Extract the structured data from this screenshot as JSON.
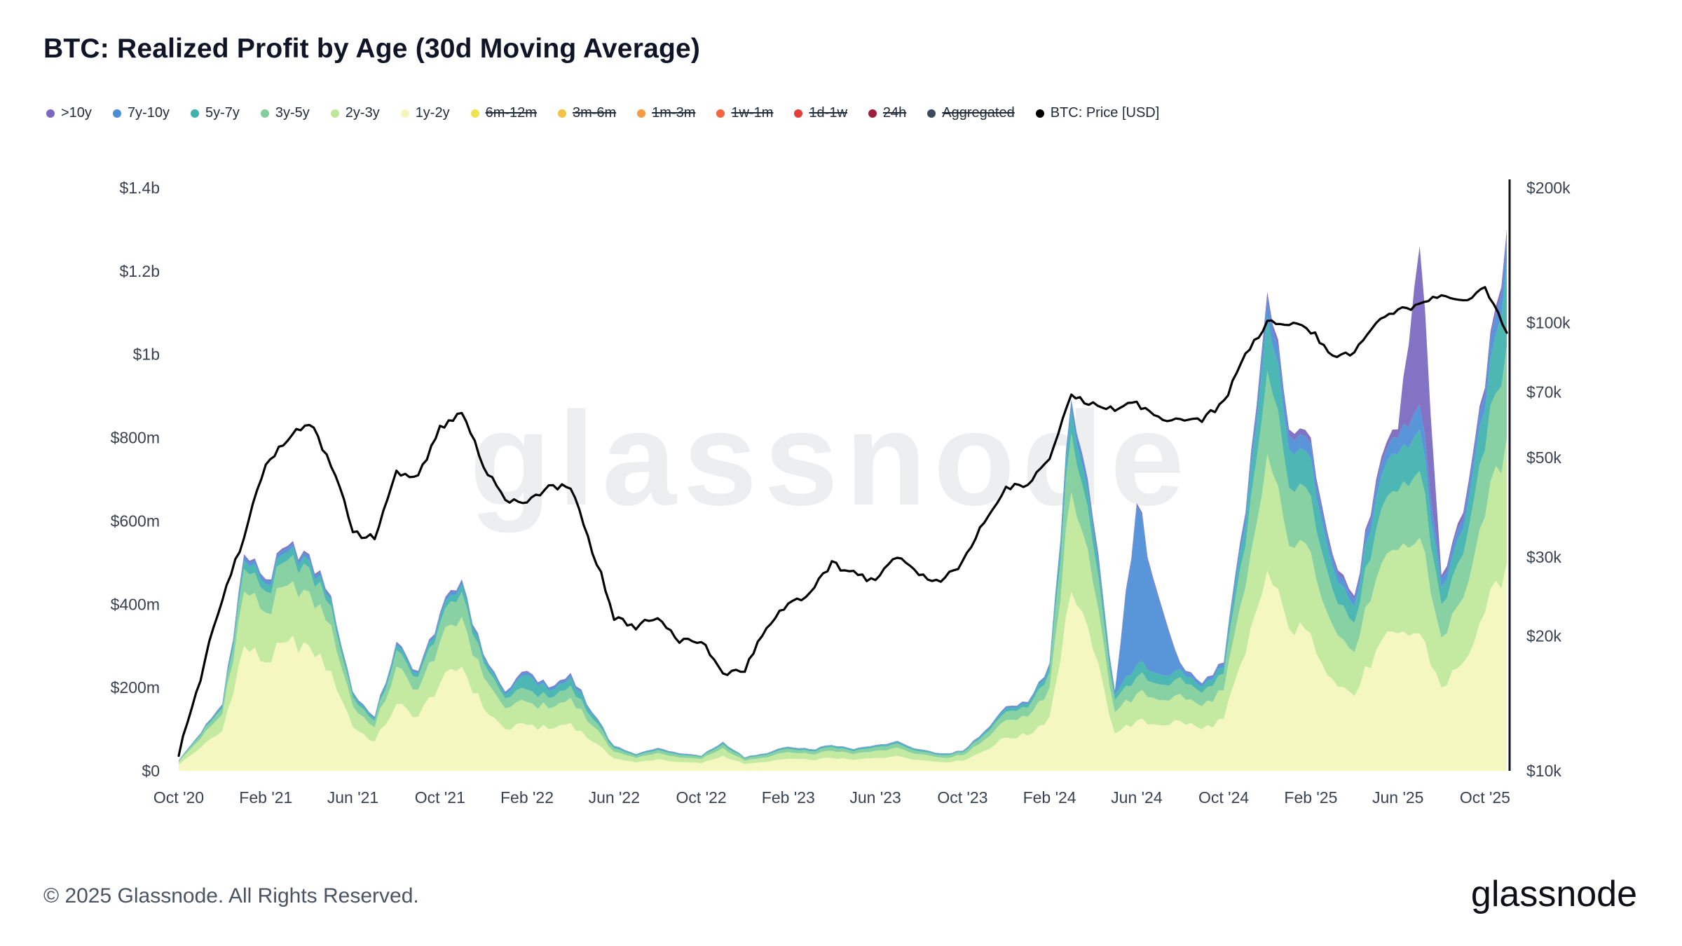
{
  "title": "BTC: Realized Profit by Age (30d Moving Average)",
  "watermark": "glassnode",
  "footer": {
    "copyright": "© 2025 Glassnode. All Rights Reserved.",
    "brand": "glassnode"
  },
  "legend": [
    {
      "label": ">10y",
      "color": "#7a68c0",
      "enabled": true
    },
    {
      "label": "7y-10y",
      "color": "#4b8ed6",
      "enabled": true
    },
    {
      "label": "5y-7y",
      "color": "#3fb1ad",
      "enabled": true
    },
    {
      "label": "3y-5y",
      "color": "#7fce9b",
      "enabled": true
    },
    {
      "label": "2y-3y",
      "color": "#bfe79a",
      "enabled": true
    },
    {
      "label": "1y-2y",
      "color": "#f3f7bb",
      "enabled": true
    },
    {
      "label": "6m-12m",
      "color": "#efe24e",
      "enabled": false
    },
    {
      "label": "3m-6m",
      "color": "#f4c244",
      "enabled": false
    },
    {
      "label": "1m-3m",
      "color": "#f79b41",
      "enabled": false
    },
    {
      "label": "1w-1m",
      "color": "#f2663f",
      "enabled": false
    },
    {
      "label": "1d-1w",
      "color": "#e53c3c",
      "enabled": false
    },
    {
      "label": "24h",
      "color": "#9e1e3c",
      "enabled": false
    },
    {
      "label": "Aggregated",
      "color": "#3e4a5a",
      "enabled": false
    },
    {
      "label": "BTC: Price [USD]",
      "color": "#000000",
      "enabled": true
    }
  ],
  "chart_data": {
    "type": "area",
    "stacked": true,
    "title": "BTC: Realized Profit by Age (30d Moving Average)",
    "legend_position": "top",
    "grid": false,
    "x_months": [
      "2020-10",
      "2020-11",
      "2020-12",
      "2021-01",
      "2021-02",
      "2021-03",
      "2021-04",
      "2021-05",
      "2021-06",
      "2021-07",
      "2021-08",
      "2021-09",
      "2021-10",
      "2021-11",
      "2021-12",
      "2022-01",
      "2022-02",
      "2022-03",
      "2022-04",
      "2022-05",
      "2022-06",
      "2022-07",
      "2022-08",
      "2022-09",
      "2022-10",
      "2022-11",
      "2022-12",
      "2023-01",
      "2023-02",
      "2023-03",
      "2023-04",
      "2023-05",
      "2023-06",
      "2023-07",
      "2023-08",
      "2023-09",
      "2023-10",
      "2023-11",
      "2023-12",
      "2024-01",
      "2024-02",
      "2024-03",
      "2024-04",
      "2024-05",
      "2024-06",
      "2024-07",
      "2024-08",
      "2024-09",
      "2024-10",
      "2024-11",
      "2024-12",
      "2025-01",
      "2025-02",
      "2025-03",
      "2025-04",
      "2025-05",
      "2025-06",
      "2025-07",
      "2025-08",
      "2025-09",
      "2025-10",
      "2025-11"
    ],
    "x_tick_indices": [
      0,
      4,
      8,
      12,
      16,
      20,
      24,
      28,
      32,
      36,
      40,
      44,
      48,
      52,
      56,
      60
    ],
    "x_tick_labels": [
      "Oct '20",
      "Feb '21",
      "Jun '21",
      "Oct '21",
      "Feb '22",
      "Jun '22",
      "Oct '22",
      "Feb '23",
      "Jun '23",
      "Oct '23",
      "Feb '24",
      "Jun '24",
      "Oct '24",
      "Feb '25",
      "Jun '25",
      "Oct '25"
    ],
    "left_axis": {
      "unit": "USD realized profit",
      "max_m": 1400,
      "values_m": [
        0,
        200,
        400,
        600,
        800,
        1000,
        1200,
        1400
      ],
      "labels": [
        "$0",
        "$200m",
        "$400m",
        "$600m",
        "$800m",
        "$1b",
        "$1.2b",
        "$1.4b"
      ]
    },
    "right_axis": {
      "scale": "log",
      "min_k": 10,
      "max_k": 200,
      "values_k": [
        10,
        20,
        30,
        50,
        70,
        100,
        200
      ],
      "labels": [
        "$10k",
        "$20k",
        "$30k",
        "$50k",
        "$70k",
        "$100k",
        "$200k"
      ]
    },
    "series": [
      {
        "name": "1y-2y",
        "color": "#f3f7bb",
        "values_m": [
          15,
          55,
          95,
          300,
          260,
          310,
          300,
          240,
          105,
          70,
          160,
          130,
          210,
          250,
          150,
          100,
          110,
          100,
          115,
          70,
          30,
          20,
          28,
          21,
          18,
          36,
          16,
          21,
          29,
          26,
          31,
          26,
          31,
          36,
          26,
          21,
          24,
          48,
          80,
          85,
          130,
          430,
          290,
          90,
          120,
          110,
          120,
          100,
          125,
          280,
          480,
          340,
          330,
          220,
          180,
          290,
          330,
          330,
          200,
          260,
          380,
          500
        ]
      },
      {
        "name": "2y-3y",
        "color": "#bfe79a",
        "values_m": [
          6,
          22,
          40,
          130,
          120,
          135,
          130,
          110,
          50,
          35,
          90,
          65,
          100,
          120,
          75,
          50,
          55,
          50,
          60,
          38,
          16,
          11,
          15,
          11,
          10,
          19,
          8,
          11,
          16,
          14,
          17,
          14,
          17,
          20,
          14,
          11,
          13,
          26,
          42,
          45,
          70,
          240,
          160,
          50,
          65,
          60,
          65,
          55,
          68,
          160,
          280,
          200,
          195,
          130,
          105,
          170,
          200,
          230,
          120,
          155,
          230,
          300
        ]
      },
      {
        "name": "3y-5y",
        "color": "#7fce9b",
        "values_m": [
          2,
          8,
          15,
          55,
          50,
          60,
          58,
          45,
          22,
          15,
          40,
          30,
          45,
          60,
          35,
          24,
          30,
          25,
          30,
          18,
          8,
          5,
          7,
          6,
          5,
          9,
          5,
          6,
          8,
          7,
          9,
          7,
          9,
          10,
          7,
          6,
          7,
          13,
          20,
          22,
          38,
          140,
          90,
          30,
          40,
          38,
          40,
          32,
          40,
          100,
          200,
          140,
          135,
          85,
          70,
          120,
          140,
          160,
          80,
          105,
          160,
          220
        ]
      },
      {
        "name": "5y-7y",
        "color": "#3fb1ad",
        "values_m": [
          1,
          3,
          6,
          20,
          18,
          20,
          18,
          15,
          8,
          6,
          12,
          9,
          15,
          18,
          12,
          9,
          35,
          17,
          20,
          9,
          4,
          2.5,
          3,
          2.5,
          2,
          4,
          2,
          2.5,
          3.5,
          3.5,
          3.5,
          3.5,
          3.5,
          4,
          3.5,
          2.5,
          2.5,
          5,
          8,
          8,
          14,
          55,
          38,
          12,
          30,
          25,
          20,
          14,
          16,
          50,
          130,
          90,
          90,
          55,
          40,
          75,
          90,
          100,
          40,
          60,
          95,
          200
        ]
      },
      {
        "name": "7y-10y",
        "color": "#4b8ed6",
        "values_m": [
          0.7,
          1.5,
          3,
          10,
          9,
          10,
          9,
          7,
          4,
          3,
          6,
          4,
          7,
          9,
          6,
          5,
          7,
          6,
          7,
          4,
          1.5,
          1,
          1.5,
          1,
          0.7,
          1.5,
          0.7,
          1,
          1,
          1,
          1,
          1,
          1,
          1.5,
          1,
          1,
          1,
          2,
          4,
          4,
          6,
          25,
          16,
          8,
          380,
          180,
          12,
          7,
          8,
          22,
          45,
          35,
          35,
          20,
          17,
          30,
          40,
          60,
          20,
          25,
          40,
          60
        ]
      },
      {
        "name": ">10y",
        "color": "#7a68c0",
        "values_m": [
          0.3,
          0.5,
          1,
          5,
          3,
          5,
          5,
          3,
          1,
          1,
          2,
          2,
          3,
          3,
          2,
          2,
          3,
          2,
          3,
          1,
          0.5,
          0.5,
          0.5,
          0.5,
          0.3,
          0.5,
          0.3,
          0.5,
          0.5,
          0.5,
          0.5,
          0.5,
          0.5,
          0.5,
          0.5,
          0.5,
          0.5,
          1,
          1,
          1,
          1,
          2,
          10,
          3,
          8,
          7,
          3,
          2,
          3,
          8,
          15,
          15,
          15,
          10,
          8,
          15,
          20,
          380,
          10,
          15,
          15,
          20
        ]
      }
    ],
    "price_line": {
      "name": "BTC: Price [USD]",
      "color": "#000000",
      "values_k": [
        10.8,
        16,
        24,
        33,
        48,
        55,
        60,
        48,
        34,
        33,
        46,
        45,
        58,
        63,
        48,
        40,
        40,
        43,
        43,
        31,
        22,
        21,
        22,
        19.5,
        19.5,
        16.5,
        16.8,
        21,
        23.5,
        25,
        29,
        27.5,
        26.5,
        30,
        27.5,
        26.5,
        29,
        36,
        43,
        43,
        50,
        68,
        66,
        64,
        66,
        62,
        60,
        61,
        66,
        85,
        100,
        100,
        96,
        85,
        85,
        100,
        106,
        110,
        115,
        112,
        120,
        95
      ]
    }
  }
}
